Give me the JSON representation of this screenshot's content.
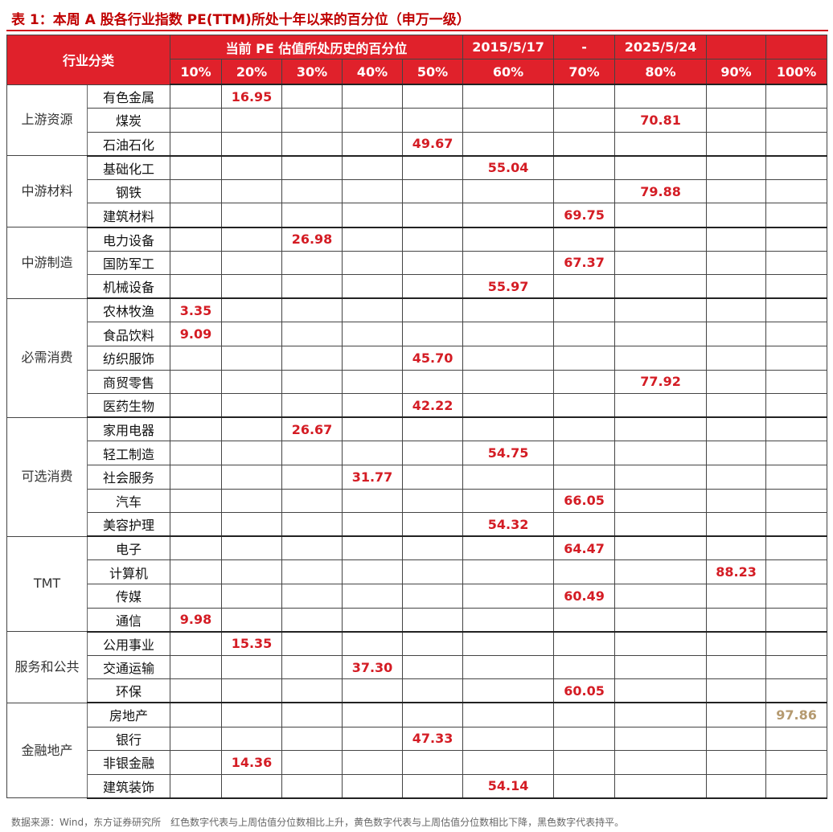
{
  "caption": "表 1：本周 A 股各行业指数 PE(TTM)所处十年以来的百分位（申万一级）",
  "header": {
    "category": "行业分类",
    "span_title": "当前 PE 估值所处历史的百分位",
    "date_start": "2015/5/17",
    "date_sep": "-",
    "date_end": "2025/5/24",
    "pct": [
      "10%",
      "20%",
      "30%",
      "40%",
      "50%",
      "60%",
      "70%",
      "80%",
      "90%",
      "100%"
    ]
  },
  "groups": [
    {
      "name": "上游资源",
      "rows": [
        {
          "industry": "有色金属",
          "value": "16.95",
          "bucket": 1,
          "trend": "up"
        },
        {
          "industry": "煤炭",
          "value": "70.81",
          "bucket": 7,
          "trend": "up"
        },
        {
          "industry": "石油石化",
          "value": "49.67",
          "bucket": 4,
          "trend": "up"
        }
      ]
    },
    {
      "name": "中游材料",
      "rows": [
        {
          "industry": "基础化工",
          "value": "55.04",
          "bucket": 5,
          "trend": "up"
        },
        {
          "industry": "钢铁",
          "value": "79.88",
          "bucket": 7,
          "trend": "up"
        },
        {
          "industry": "建筑材料",
          "value": "69.75",
          "bucket": 6,
          "trend": "up"
        }
      ]
    },
    {
      "name": "中游制造",
      "rows": [
        {
          "industry": "电力设备",
          "value": "26.98",
          "bucket": 2,
          "trend": "up"
        },
        {
          "industry": "国防军工",
          "value": "67.37",
          "bucket": 6,
          "trend": "up"
        },
        {
          "industry": "机械设备",
          "value": "55.97",
          "bucket": 5,
          "trend": "up"
        }
      ]
    },
    {
      "name": "必需消费",
      "rows": [
        {
          "industry": "农林牧渔",
          "value": "3.35",
          "bucket": 0,
          "trend": "up"
        },
        {
          "industry": "食品饮料",
          "value": "9.09",
          "bucket": 0,
          "trend": "up"
        },
        {
          "industry": "纺织服饰",
          "value": "45.70",
          "bucket": 4,
          "trend": "up"
        },
        {
          "industry": "商贸零售",
          "value": "77.92",
          "bucket": 7,
          "trend": "up"
        },
        {
          "industry": "医药生物",
          "value": "42.22",
          "bucket": 4,
          "trend": "up"
        }
      ]
    },
    {
      "name": "可选消费",
      "rows": [
        {
          "industry": "家用电器",
          "value": "26.67",
          "bucket": 2,
          "trend": "up"
        },
        {
          "industry": "轻工制造",
          "value": "54.75",
          "bucket": 5,
          "trend": "up"
        },
        {
          "industry": "社会服务",
          "value": "31.77",
          "bucket": 3,
          "trend": "up"
        },
        {
          "industry": "汽车",
          "value": "66.05",
          "bucket": 6,
          "trend": "up"
        },
        {
          "industry": "美容护理",
          "value": "54.32",
          "bucket": 5,
          "trend": "up"
        }
      ]
    },
    {
      "name": "TMT",
      "rows": [
        {
          "industry": "电子",
          "value": "64.47",
          "bucket": 6,
          "trend": "up"
        },
        {
          "industry": "计算机",
          "value": "88.23",
          "bucket": 8,
          "trend": "up"
        },
        {
          "industry": "传媒",
          "value": "60.49",
          "bucket": 6,
          "trend": "up"
        },
        {
          "industry": "通信",
          "value": "9.98",
          "bucket": 0,
          "trend": "up"
        }
      ]
    },
    {
      "name": "服务和公共",
      "rows": [
        {
          "industry": "公用事业",
          "value": "15.35",
          "bucket": 1,
          "trend": "up"
        },
        {
          "industry": "交通运输",
          "value": "37.30",
          "bucket": 3,
          "trend": "up"
        },
        {
          "industry": "环保",
          "value": "60.05",
          "bucket": 6,
          "trend": "up"
        }
      ]
    },
    {
      "name": "金融地产",
      "rows": [
        {
          "industry": "房地产",
          "value": "97.86",
          "bucket": 9,
          "trend": "down"
        },
        {
          "industry": "银行",
          "value": "47.33",
          "bucket": 4,
          "trend": "up"
        },
        {
          "industry": "非银金融",
          "value": "14.36",
          "bucket": 1,
          "trend": "up"
        },
        {
          "industry": "建筑装饰",
          "value": "54.14",
          "bucket": 5,
          "trend": "up"
        }
      ]
    }
  ],
  "colors": {
    "up": "#d41c24",
    "down": "#b59a70",
    "flat": "#111111",
    "header_bg": "#e0212b"
  },
  "footnote": "数据来源：Wind，东方证券研究所　红色数字代表与上周估值分位数相比上升，黄色数字代表与上周估值分位数相比下降，黑色数字代表持平。"
}
